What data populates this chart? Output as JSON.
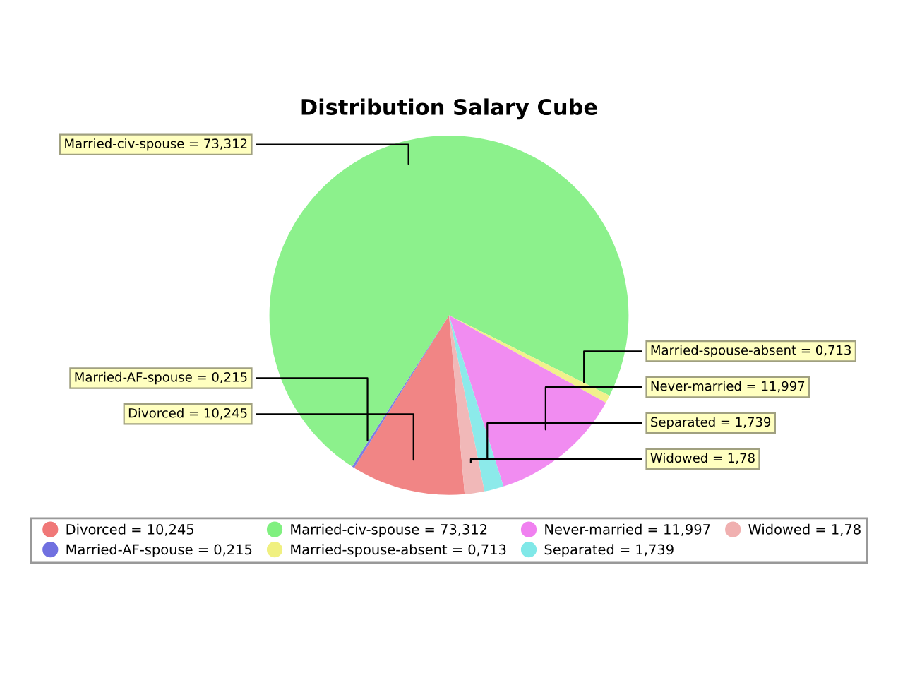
{
  "chart_data": {
    "type": "pie",
    "title": "Distribution Salary Cube",
    "categories": [
      "Divorced = 10,245",
      "Married-AF-spouse = 0,215",
      "Married-civ-spouse = 73,312",
      "Married-spouse-absent = 0,713",
      "Never-married = 11,997",
      "Separated = 1,739",
      "Widowed = 1,78"
    ],
    "values": [
      10.245,
      0.215,
      73.312,
      0.713,
      11.997,
      1.739,
      1.78
    ],
    "colors": [
      "#f07878",
      "#7070e0",
      "#80f080",
      "#f0f080",
      "#f080f0",
      "#80e8e8",
      "#f0b0b0"
    ],
    "legend": "bottom"
  }
}
